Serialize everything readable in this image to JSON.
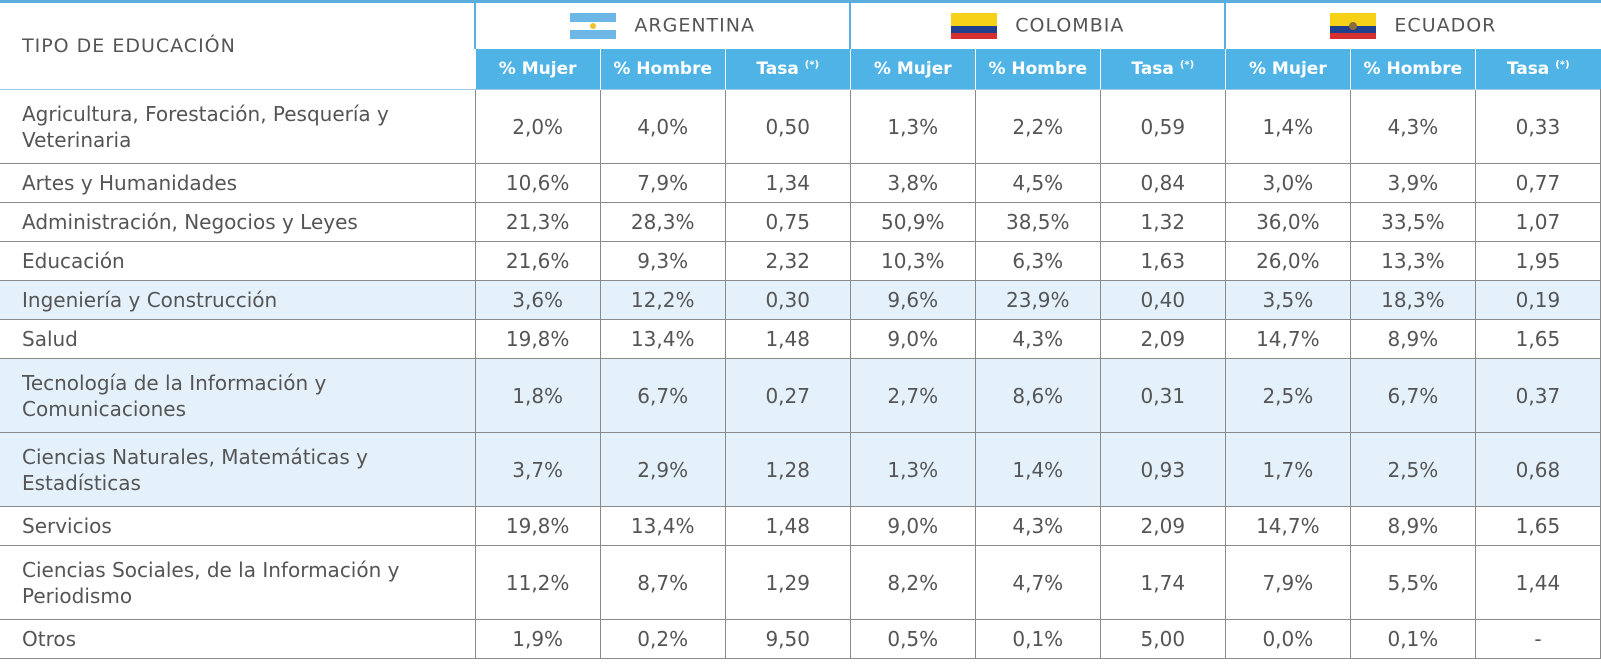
{
  "header": {
    "title": "TIPO DE EDUCACIÓN",
    "countries": [
      "ARGENTINA",
      "COLOMBIA",
      "ECUADOR"
    ],
    "columns": [
      "% Mujer",
      "% Hombre",
      "Tasa"
    ],
    "note": "(*)"
  },
  "table": {
    "rows": [
      {
        "label": "Agricultura, Forestación, Pesquería y Veterinaria",
        "cells": [
          "2,0%",
          "4,0%",
          "0,50",
          "1,3%",
          "2,2%",
          "0,59",
          "1,4%",
          "4,3%",
          "0,33"
        ],
        "highlight": false
      },
      {
        "label": "Artes y Humanidades",
        "cells": [
          "10,6%",
          "7,9%",
          "1,34",
          "3,8%",
          "4,5%",
          "0,84",
          "3,0%",
          "3,9%",
          "0,77"
        ],
        "highlight": false
      },
      {
        "label": "Administración, Negocios y Leyes",
        "cells": [
          "21,3%",
          "28,3%",
          "0,75",
          "50,9%",
          "38,5%",
          "1,32",
          "36,0%",
          "33,5%",
          "1,07"
        ],
        "highlight": false
      },
      {
        "label": "Educación",
        "cells": [
          "21,6%",
          "9,3%",
          "2,32",
          "10,3%",
          "6,3%",
          "1,63",
          "26,0%",
          "13,3%",
          "1,95"
        ],
        "highlight": false
      },
      {
        "label": "Ingeniería y Construcción",
        "cells": [
          "3,6%",
          "12,2%",
          "0,30",
          "9,6%",
          "23,9%",
          "0,40",
          "3,5%",
          "18,3%",
          "0,19"
        ],
        "highlight": true
      },
      {
        "label": "Salud",
        "cells": [
          "19,8%",
          "13,4%",
          "1,48",
          "9,0%",
          "4,3%",
          "2,09",
          "14,7%",
          "8,9%",
          "1,65"
        ],
        "highlight": false
      },
      {
        "label": "Tecnología de la Información y Comunicaciones",
        "cells": [
          "1,8%",
          "6,7%",
          "0,27",
          "2,7%",
          "8,6%",
          "0,31",
          "2,5%",
          "6,7%",
          "0,37"
        ],
        "highlight": true
      },
      {
        "label": "Ciencias Naturales, Matemáticas y Estadísticas",
        "cells": [
          "3,7%",
          "2,9%",
          "1,28",
          "1,3%",
          "1,4%",
          "0,93",
          "1,7%",
          "2,5%",
          "0,68"
        ],
        "highlight": true
      },
      {
        "label": "Servicios",
        "cells": [
          "19,8%",
          "13,4%",
          "1,48",
          "9,0%",
          "4,3%",
          "2,09",
          "14,7%",
          "8,9%",
          "1,65"
        ],
        "highlight": false
      },
      {
        "label": "Ciencias Sociales, de la Información y Periodismo",
        "cells": [
          "11,2%",
          "8,7%",
          "1,29",
          "8,2%",
          "4,7%",
          "1,74",
          "7,9%",
          "5,5%",
          "1,44"
        ],
        "highlight": false
      },
      {
        "label": "Otros",
        "cells": [
          "1,9%",
          "0,2%",
          "9,50",
          "0,5%",
          "0,1%",
          "5,00",
          "0,0%",
          "0,1%",
          "-"
        ],
        "highlight": false
      }
    ]
  }
}
